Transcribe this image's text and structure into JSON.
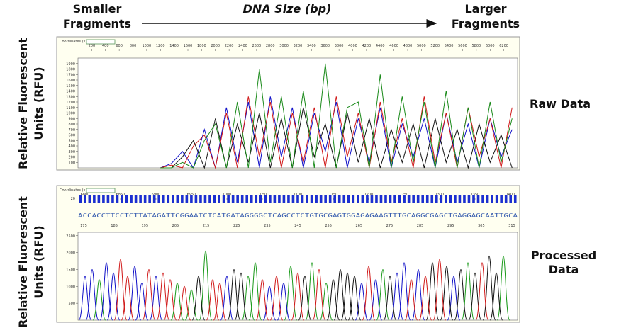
{
  "header": {
    "left": [
      "Smaller",
      "Fragments"
    ],
    "center": "DNA Size (bp)",
    "right": [
      "Larger",
      "Fragments"
    ]
  },
  "chart_data": [
    {
      "type": "line",
      "panel_label": [
        "Raw Data"
      ],
      "y_label": [
        "Relative Fluorescent",
        "Units (RFU)"
      ],
      "coordinates_label": "Coordinates (x,y)",
      "x": [
        1200,
        1360,
        1520,
        1680,
        1840,
        2000,
        2160,
        2320,
        2480,
        2640,
        2800,
        2960,
        3120,
        3280,
        3440,
        3600,
        3760,
        3920,
        4080,
        4240,
        4400,
        4560,
        4720,
        4880,
        5040,
        5200,
        5360,
        5520,
        5680,
        5840,
        6000,
        6160,
        6320
      ],
      "xlim": [
        0,
        6400
      ],
      "xticks": [
        200,
        400,
        600,
        800,
        1000,
        1200,
        1400,
        1600,
        1800,
        2000,
        2200,
        2400,
        2600,
        2800,
        3000,
        3200,
        3400,
        3600,
        3800,
        4000,
        4200,
        4400,
        4600,
        4800,
        5000,
        5200,
        5400,
        5600,
        5800,
        6000,
        6200
      ],
      "ylim": [
        0,
        2000
      ],
      "yticks": [
        100,
        200,
        300,
        400,
        500,
        600,
        700,
        800,
        900,
        1000,
        1100,
        1200,
        1300,
        1400,
        1500,
        1600,
        1700,
        1800,
        1900
      ],
      "series": [
        {
          "color": "#1010c8",
          "values": [
            0,
            80,
            300,
            0,
            700,
            0,
            1100,
            100,
            1200,
            0,
            1300,
            200,
            1100,
            0,
            1000,
            300,
            1200,
            0,
            900,
            100,
            1100,
            0,
            800,
            200,
            900,
            0,
            1000,
            100,
            800,
            0,
            900,
            200,
            700
          ]
        },
        {
          "color": "#111111",
          "values": [
            0,
            0,
            200,
            500,
            0,
            900,
            0,
            800,
            100,
            1000,
            0,
            900,
            0,
            1100,
            200,
            800,
            0,
            1000,
            100,
            900,
            0,
            700,
            100,
            800,
            0,
            900,
            100,
            700,
            0,
            800,
            100,
            600,
            0
          ]
        },
        {
          "color": "#d01818",
          "values": [
            0,
            50,
            0,
            400,
            600,
            0,
            1000,
            0,
            1300,
            200,
            1200,
            0,
            1000,
            100,
            1100,
            0,
            1300,
            200,
            1000,
            0,
            1200,
            100,
            900,
            0,
            1300,
            100,
            1000,
            0,
            1100,
            200,
            900,
            0,
            1100
          ]
        },
        {
          "color": "#1a8a1a",
          "values": [
            0,
            0,
            100,
            0,
            500,
            800,
            0,
            1200,
            0,
            1800,
            100,
            1300,
            0,
            1400,
            0,
            1900,
            0,
            1100,
            1200,
            0,
            1700,
            0,
            1300,
            100,
            1200,
            0,
            1400,
            0,
            1100,
            0,
            1200,
            100,
            900
          ]
        }
      ]
    },
    {
      "type": "peaks",
      "panel_label": [
        "Processed",
        "Data"
      ],
      "y_label": [
        "Relative Fluorescent",
        "Units (RFU)"
      ],
      "coordinates_label": "Coordinates (x,y)",
      "quality_tick": 20,
      "sequence": "ACCACCTTCCTCTTATAGATTCGGAATCTCATGATAGGGGCTCAGCCTCTGTGCGAGTGGAGAGAAGTTTGCAGGCGAGCTGAGGAGCAATTGCA",
      "base_ticks": [
        175,
        185,
        195,
        205,
        215,
        225,
        235,
        245,
        255,
        265,
        275,
        285,
        295,
        305,
        315
      ],
      "xlim": [
        6790,
        7410
      ],
      "xticks": [
        6800,
        6850,
        6900,
        6950,
        7000,
        7050,
        7100,
        7150,
        7200,
        7250,
        7300,
        7350,
        7400
      ],
      "ylim": [
        0,
        2600
      ],
      "yticks": [
        500,
        1000,
        1500,
        2000,
        2500
      ],
      "series": [
        {
          "color": "#1a9a1a",
          "x": [
            6820,
            6930,
            6950,
            6970,
            7030,
            7040,
            7090,
            7120,
            7140,
            7220,
            7340,
            7390
          ],
          "values": [
            1200,
            1100,
            900,
            2050,
            1300,
            1700,
            1600,
            1700,
            1100,
            1500,
            1700,
            1900
          ]
        },
        {
          "color": "#1010c8",
          "x": [
            6800,
            6810,
            6830,
            6840,
            6870,
            6880,
            6900,
            7000,
            7060,
            7080,
            7190,
            7210,
            7240,
            7250,
            7270,
            7320
          ],
          "values": [
            1300,
            1500,
            1700,
            1400,
            1600,
            1100,
            1300,
            1300,
            1000,
            1100,
            1100,
            1200,
            1400,
            1700,
            1500,
            1300
          ]
        },
        {
          "color": "#111111",
          "x": [
            6960,
            7010,
            7020,
            7110,
            7150,
            7160,
            7170,
            7180,
            7230,
            7290,
            7310,
            7330,
            7350,
            7370,
            7380
          ],
          "values": [
            1300,
            1500,
            1400,
            1300,
            1200,
            1500,
            1400,
            1300,
            1300,
            1700,
            1600,
            1500,
            1400,
            1900,
            1400
          ]
        },
        {
          "color": "#d01818",
          "x": [
            6850,
            6860,
            6890,
            6910,
            6920,
            6940,
            6980,
            6990,
            7050,
            7070,
            7100,
            7130,
            7200,
            7260,
            7280,
            7300,
            7360
          ],
          "values": [
            1800,
            1300,
            1500,
            1400,
            1200,
            1000,
            1200,
            1100,
            1200,
            1300,
            1400,
            1500,
            1600,
            1200,
            1300,
            1800,
            1700
          ]
        }
      ]
    }
  ]
}
